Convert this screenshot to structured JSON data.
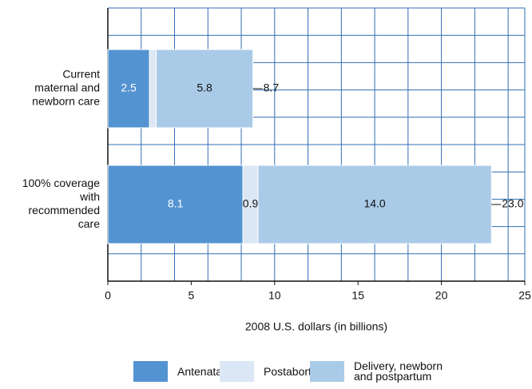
{
  "chart_data": {
    "type": "stacked-barh",
    "categories": [
      [
        "Current",
        "maternal and",
        "newborn care"
      ],
      [
        "100% coverage",
        "with",
        "recommended",
        "care"
      ]
    ],
    "series": [
      {
        "name": "Antenatal",
        "color": "#5493d1",
        "values": [
          2.5,
          8.1
        ]
      },
      {
        "name": "Postabortion",
        "color": "#dbe7f5",
        "values": [
          0.4,
          0.9
        ],
        "value_labels": [
          null,
          "0.9"
        ]
      },
      {
        "name": "Delivery, newborn and postpartum",
        "color": "#aacbe8",
        "values": [
          5.8,
          14.0
        ],
        "value_labels": [
          "5.8",
          "14.0"
        ]
      }
    ],
    "totals": {
      "values": [
        8.7,
        23.0
      ],
      "value_labels": [
        "8.7",
        "23.0"
      ]
    },
    "xlabel": "2008 U.S. dollars (in billions)",
    "xlim": [
      0,
      25
    ],
    "xticks": [
      0,
      5,
      10,
      15,
      20,
      25
    ],
    "xgrid": [
      0,
      2,
      4,
      6,
      8,
      10,
      12,
      14,
      16,
      18,
      20,
      22,
      24
    ],
    "grid": true,
    "legend": "bottom"
  }
}
